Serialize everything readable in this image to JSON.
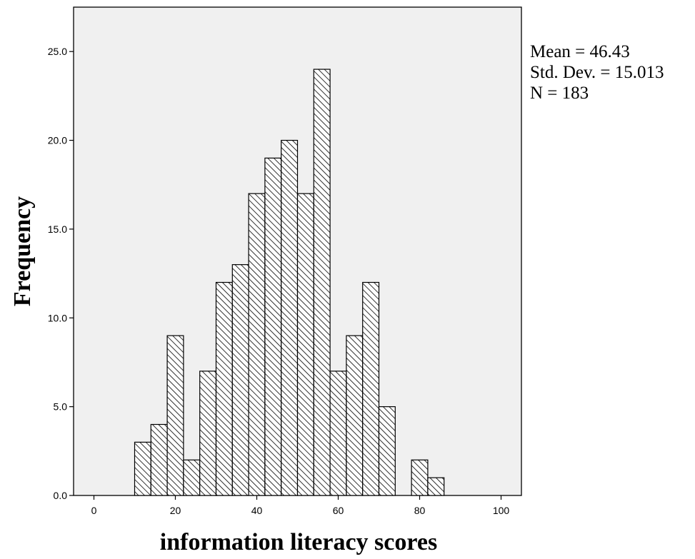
{
  "chart_data": {
    "type": "bar",
    "subtype": "histogram",
    "title": "",
    "xlabel": "information literacy scores",
    "ylabel": "Frequency",
    "xlim": [
      -5,
      105
    ],
    "ylim": [
      0,
      27.5
    ],
    "bin_width": 4,
    "x_ticks": [
      "0",
      "20",
      "40",
      "60",
      "80",
      "100"
    ],
    "y_ticks": [
      "0.0",
      "5.0",
      "10.0",
      "15.0",
      "20.0",
      "25.0"
    ],
    "bins": [
      {
        "start": 10,
        "end": 14,
        "value": 3
      },
      {
        "start": 14,
        "end": 18,
        "value": 4
      },
      {
        "start": 18,
        "end": 22,
        "value": 9
      },
      {
        "start": 22,
        "end": 26,
        "value": 2
      },
      {
        "start": 26,
        "end": 30,
        "value": 7
      },
      {
        "start": 30,
        "end": 34,
        "value": 12
      },
      {
        "start": 34,
        "end": 38,
        "value": 13
      },
      {
        "start": 38,
        "end": 42,
        "value": 17
      },
      {
        "start": 42,
        "end": 46,
        "value": 19
      },
      {
        "start": 46,
        "end": 50,
        "value": 20
      },
      {
        "start": 50,
        "end": 54,
        "value": 17
      },
      {
        "start": 54,
        "end": 58,
        "value": 24
      },
      {
        "start": 58,
        "end": 62,
        "value": 7
      },
      {
        "start": 62,
        "end": 66,
        "value": 9
      },
      {
        "start": 66,
        "end": 70,
        "value": 12
      },
      {
        "start": 70,
        "end": 74,
        "value": 5
      },
      {
        "start": 74,
        "end": 78,
        "value": 0
      },
      {
        "start": 78,
        "end": 82,
        "value": 2
      },
      {
        "start": 82,
        "end": 86,
        "value": 1
      }
    ],
    "grid": false,
    "plot_background": "#f0f0f0",
    "bar_fill": "hatched diagonal",
    "stats": {
      "mean": "Mean = 46.43",
      "std_dev": "Std. Dev. = 15.013",
      "n": "N = 183"
    }
  }
}
